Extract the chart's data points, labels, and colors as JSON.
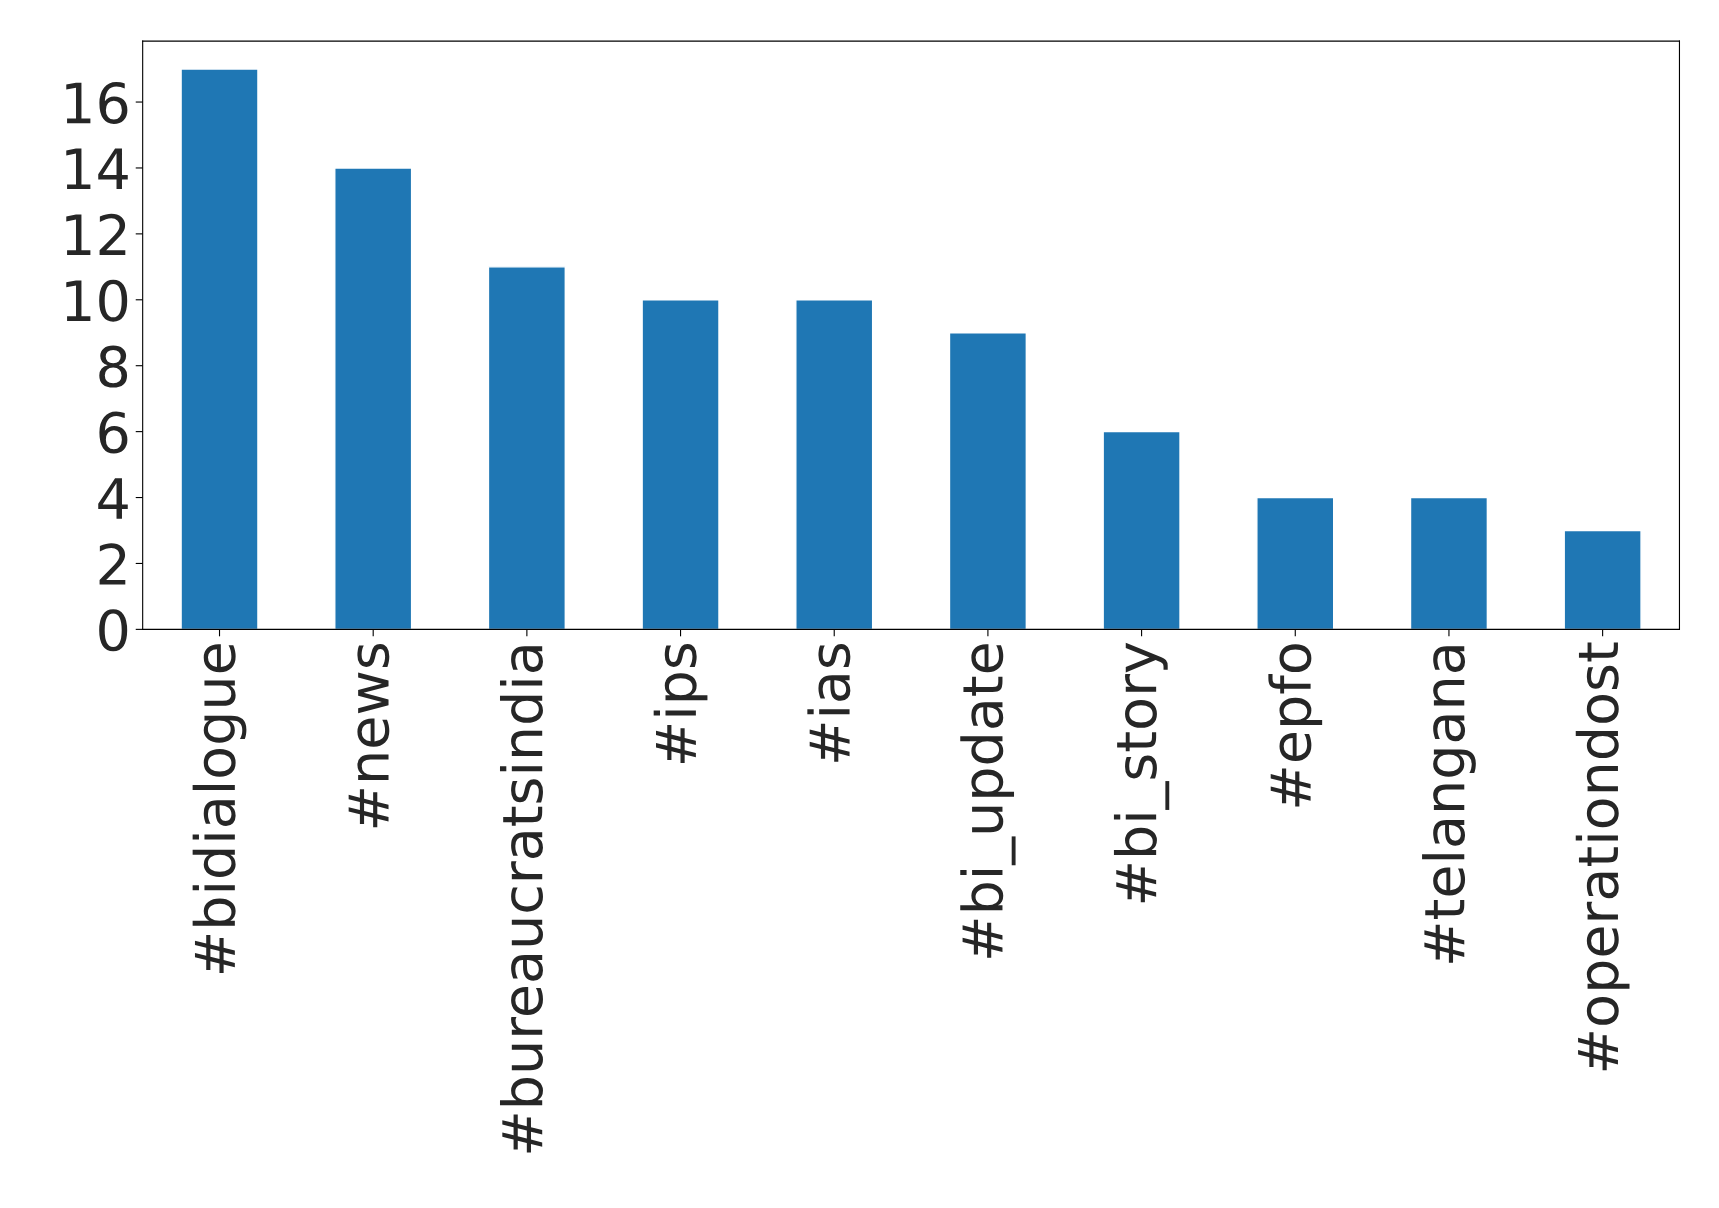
{
  "chart_data": {
    "type": "bar",
    "categories": [
      "#bidialogue",
      "#news",
      "#bureaucratsindia",
      "#ips",
      "#ias",
      "#bi_update",
      "#bi_story",
      "#epfo",
      "#telangana",
      "#operationdost"
    ],
    "values": [
      17,
      14,
      11,
      10,
      10,
      9,
      6,
      4,
      4,
      3
    ],
    "color": "#1f77b4",
    "ylim": [
      0,
      17.85
    ],
    "yticks": [
      0,
      2,
      4,
      6,
      8,
      10,
      12,
      14,
      16
    ],
    "grid": false,
    "legend": false
  }
}
